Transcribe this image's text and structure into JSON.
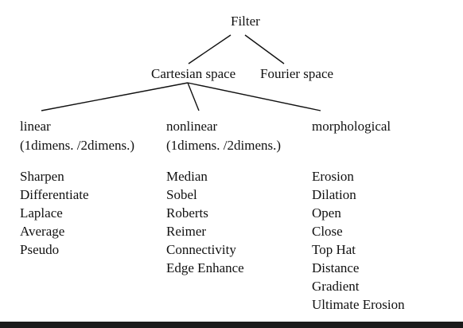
{
  "tree": {
    "root": "Filter",
    "level1": [
      "Cartesian space",
      "Fourier space"
    ],
    "columns": [
      {
        "heading": "linear",
        "subheading": "(1dimens. /2dimens.)",
        "items": [
          "Sharpen",
          "Differentiate",
          "Laplace",
          "Average",
          "Pseudo"
        ]
      },
      {
        "heading": "nonlinear",
        "subheading": "(1dimens. /2dimens.)",
        "items": [
          "Median",
          "Sobel",
          "Roberts",
          "Reimer",
          "Connectivity",
          "Edge Enhance"
        ]
      },
      {
        "heading": "morphological",
        "subheading": "",
        "items": [
          "Erosion",
          "Dilation",
          "Open",
          "Close",
          "Top Hat",
          "Distance",
          "Gradient",
          "Ultimate Erosion"
        ]
      }
    ]
  }
}
